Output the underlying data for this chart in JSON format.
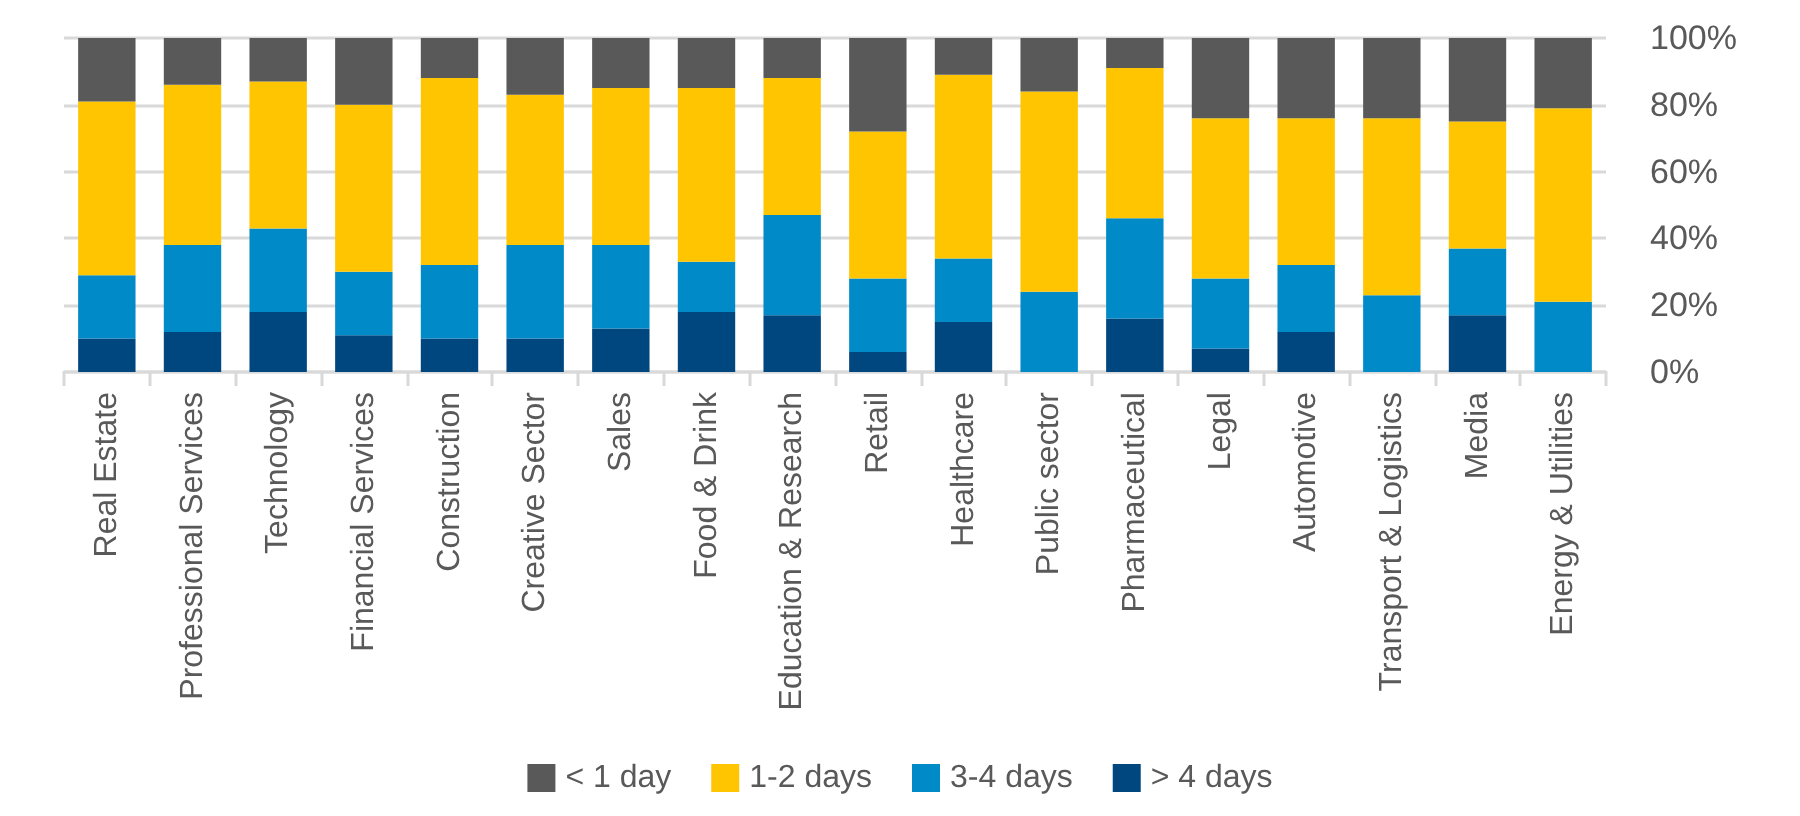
{
  "chart_data": {
    "type": "bar",
    "stacked": true,
    "categories": [
      "Real Estate",
      "Professional Services",
      "Technology",
      "Financial Services",
      "Construction",
      "Creative Sector",
      "Sales",
      "Food & Drink",
      "Education & Research",
      "Retail",
      "Healthcare",
      "Public sector",
      "Pharmaceutical",
      "Legal",
      "Automotive",
      "Transport & Logistics",
      "Media",
      "Energy & Utilities"
    ],
    "series": [
      {
        "name": "> 4 days",
        "color": "#00467f",
        "values": [
          10,
          12,
          18,
          11,
          10,
          10,
          13,
          18,
          17,
          6,
          15,
          0,
          16,
          7,
          12,
          0,
          17,
          0
        ]
      },
      {
        "name": "3-4 days",
        "color": "#008ac8",
        "values": [
          19,
          26,
          25,
          19,
          22,
          28,
          25,
          15,
          30,
          22,
          19,
          24,
          30,
          21,
          20,
          23,
          20,
          21
        ]
      },
      {
        "name": "1-2 days",
        "color": "#ffc500",
        "values": [
          52,
          48,
          44,
          50,
          56,
          45,
          47,
          52,
          41,
          44,
          55,
          60,
          45,
          48,
          44,
          53,
          38,
          58
        ]
      },
      {
        "name": "< 1 day",
        "color": "#595959",
        "values": [
          19,
          14,
          13,
          20,
          12,
          17,
          15,
          15,
          12,
          28,
          11,
          16,
          9,
          24,
          24,
          24,
          25,
          21
        ]
      }
    ],
    "ylim": [
      0,
      100
    ],
    "yticks": [
      {
        "value": 0,
        "label": "0%"
      },
      {
        "value": 20,
        "label": "20%"
      },
      {
        "value": 40,
        "label": "40%"
      },
      {
        "value": 60,
        "label": "60%"
      },
      {
        "value": 80,
        "label": "80%"
      },
      {
        "value": 100,
        "label": "100%"
      }
    ],
    "grid": "y",
    "legend": "bottom"
  }
}
